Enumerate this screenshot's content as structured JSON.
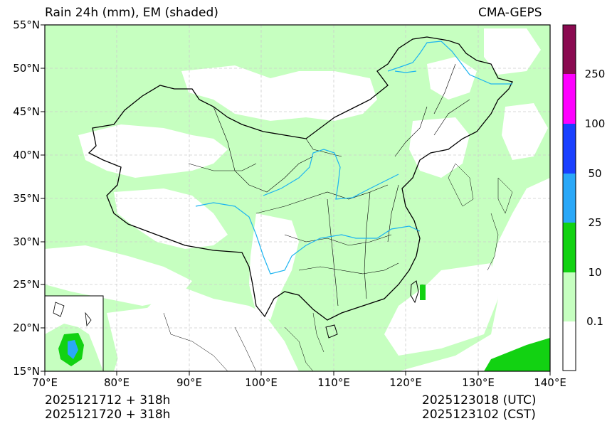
{
  "header": {
    "title": "Rain 24h (mm), EM (shaded)",
    "model": "CMA-GEPS"
  },
  "map": {
    "lon_range": [
      70,
      140
    ],
    "lat_range": [
      15,
      55
    ],
    "lat_ticks": [
      "55°N",
      "50°N",
      "45°N",
      "40°N",
      "35°N",
      "30°N",
      "25°N",
      "20°N",
      "15°N"
    ],
    "lon_ticks": [
      "70°E",
      "80°E",
      "90°E",
      "100°E",
      "110°E",
      "120°E",
      "130°E",
      "140°E"
    ],
    "colors": {
      "land_rain": "#c6ffc0",
      "river": "#1cb4f0",
      "border": "#000000"
    }
  },
  "colorbar": {
    "labels": [
      "0.1",
      "10",
      "25",
      "50",
      "100",
      "250"
    ],
    "colors": [
      "#ffffff",
      "#c6ffc0",
      "#12d212",
      "#2aa8f8",
      "#1a40ff",
      "#ff00ff",
      "#8a0a50"
    ]
  },
  "footer": {
    "init_time": "2025121712 + 318h",
    "init_time_cst": "2025121720 + 318h",
    "valid_utc": "2025123018 (UTC)",
    "valid_cst": "2025123102 (CST)"
  }
}
